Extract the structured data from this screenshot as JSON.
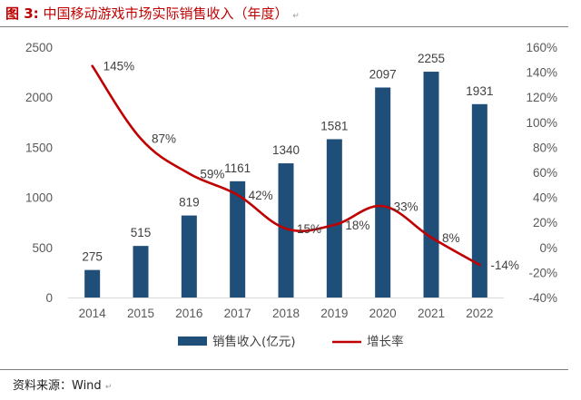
{
  "header": {
    "figure_number": "图 3:",
    "figure_title": "中国移动游戏市场实际销售收入（年度）",
    "para_mark": "↵"
  },
  "footer": {
    "source": "资料来源：Wind",
    "para_mark": "↵"
  },
  "chart_data": {
    "type": "bar",
    "categories": [
      "2014",
      "2015",
      "2016",
      "2017",
      "2018",
      "2019",
      "2020",
      "2021",
      "2022"
    ],
    "series": [
      {
        "name": "销售收入(亿元)",
        "type": "bar",
        "axis": "left",
        "color": "#1f4e79",
        "values": [
          275,
          515,
          819,
          1161,
          1340,
          1581,
          2097,
          2255,
          1931
        ],
        "labels": [
          "275",
          "515",
          "819",
          "1161",
          "1340",
          "1581",
          "2097",
          "2255",
          "1931"
        ]
      },
      {
        "name": "增长率",
        "type": "line",
        "axis": "right",
        "color": "#c00000",
        "values": [
          145,
          87,
          59,
          42,
          15,
          18,
          33,
          8,
          -14
        ],
        "labels": [
          "145%",
          "87%",
          "59%",
          "42%",
          "15%",
          "18%",
          "33%",
          "8%",
          "-14%"
        ]
      }
    ],
    "y_left": {
      "min": 0,
      "max": 2500,
      "ticks": [
        "0",
        "500",
        "1000",
        "1500",
        "2000",
        "2500"
      ]
    },
    "y_right": {
      "min": -40,
      "max": 160,
      "ticks": [
        "-40%",
        "-20%",
        "0%",
        "20%",
        "40%",
        "60%",
        "80%",
        "100%",
        "120%",
        "140%",
        "160%"
      ]
    },
    "grid": false,
    "legend": "bottom"
  }
}
